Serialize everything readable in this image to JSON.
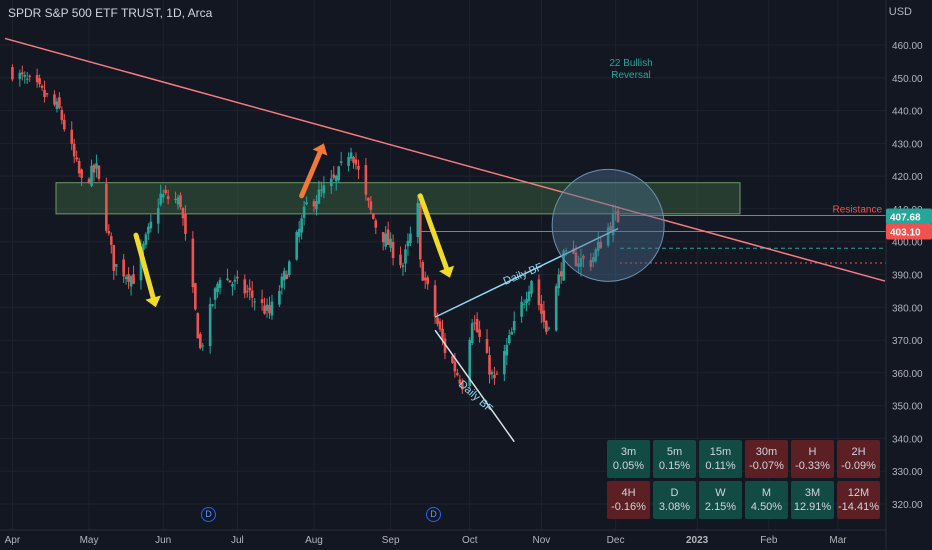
{
  "header": {
    "title": "SPDR S&P 500 ETF TRUST, 1D, Arca",
    "currency": "USD"
  },
  "chart_data": {
    "type": "candlestick",
    "ylim": [
      315,
      466
    ],
    "x_ticks": [
      "Apr",
      "May",
      "Jun",
      "Jul",
      "Aug",
      "Sep",
      "Oct",
      "Nov",
      "Dec",
      "2023",
      "Feb",
      "Mar"
    ],
    "y_ticks": [
      460,
      450,
      440,
      430,
      420,
      410,
      400,
      390,
      380,
      370,
      360,
      350,
      340,
      330,
      320
    ],
    "price_labels": {
      "last": "407.68",
      "prev": "403.10",
      "resistance": "Resistance"
    },
    "annotations": {
      "bullish_reversal": [
        "22 Bullish",
        "Reversal"
      ],
      "pattern_upper": "Daily BF",
      "pattern_lower": "Daily BF",
      "event_markers": [
        "D",
        "D"
      ]
    },
    "anchors": [
      {
        "date": "2022-04-01",
        "close": 452
      },
      {
        "date": "2022-04-12",
        "close": 446
      },
      {
        "date": "2022-04-20",
        "close": 440
      },
      {
        "date": "2022-04-29",
        "close": 418
      },
      {
        "date": "2022-05-05",
        "close": 422
      },
      {
        "date": "2022-05-12",
        "close": 393
      },
      {
        "date": "2022-05-20",
        "close": 389
      },
      {
        "date": "2022-05-31",
        "close": 414
      },
      {
        "date": "2022-06-08",
        "close": 412
      },
      {
        "date": "2022-06-16",
        "close": 367
      },
      {
        "date": "2022-06-24",
        "close": 390
      },
      {
        "date": "2022-07-06",
        "close": 384
      },
      {
        "date": "2022-07-14",
        "close": 378
      },
      {
        "date": "2022-07-22",
        "close": 393
      },
      {
        "date": "2022-07-29",
        "close": 411
      },
      {
        "date": "2022-08-10",
        "close": 419
      },
      {
        "date": "2022-08-16",
        "close": 429
      },
      {
        "date": "2022-08-22",
        "close": 413
      },
      {
        "date": "2022-08-26",
        "close": 405
      },
      {
        "date": "2022-09-06",
        "close": 393
      },
      {
        "date": "2022-09-12",
        "close": 410
      },
      {
        "date": "2022-09-13",
        "close": 393
      },
      {
        "date": "2022-09-23",
        "close": 367
      },
      {
        "date": "2022-09-30",
        "close": 357
      },
      {
        "date": "2022-10-04",
        "close": 377
      },
      {
        "date": "2022-10-13",
        "close": 357
      },
      {
        "date": "2022-10-21",
        "close": 374
      },
      {
        "date": "2022-10-28",
        "close": 389
      },
      {
        "date": "2022-11-03",
        "close": 373
      },
      {
        "date": "2022-11-10",
        "close": 395
      },
      {
        "date": "2022-11-21",
        "close": 394
      },
      {
        "date": "2022-11-30",
        "close": 407
      },
      {
        "date": "2022-12-02",
        "close": 407
      }
    ],
    "levels": {
      "zone_top": 418,
      "zone_bottom": 408.5,
      "resistance": 408,
      "red_line": 403.1,
      "green_dashed": 398,
      "red_dashed": 393.5
    },
    "trendline": [
      {
        "date": "2022-03-29",
        "value": 462
      },
      {
        "date": "2023-03-20",
        "value": 388
      }
    ],
    "channel_upper": [
      {
        "date": "2022-09-19",
        "value": 377
      },
      {
        "date": "2022-12-02",
        "value": 404
      }
    ],
    "channel_lower": [
      {
        "date": "2022-09-19",
        "value": 373
      },
      {
        "date": "2022-10-21",
        "value": 339
      }
    ],
    "arrows": [
      {
        "color": "#f0db2a",
        "direction": "down",
        "from": {
          "date": "2022-05-21",
          "value": 402
        },
        "to": {
          "date": "2022-05-29",
          "value": 380
        }
      },
      {
        "color": "#f47936",
        "direction": "up",
        "from": {
          "date": "2022-07-27",
          "value": 414
        },
        "to": {
          "date": "2022-08-05",
          "value": 430
        }
      },
      {
        "color": "#f0db2a",
        "direction": "down",
        "from": {
          "date": "2022-09-13",
          "value": 414
        },
        "to": {
          "date": "2022-09-25",
          "value": 389
        }
      }
    ],
    "highlight": {
      "date": "2022-11-28",
      "value": 405
    }
  },
  "performance": [
    {
      "period": "3m",
      "change": "0.05%",
      "positive": true
    },
    {
      "period": "5m",
      "change": "0.15%",
      "positive": true
    },
    {
      "period": "15m",
      "change": "0.11%",
      "positive": true
    },
    {
      "period": "30m",
      "change": "-0.07%",
      "positive": false
    },
    {
      "period": "H",
      "change": "-0.33%",
      "positive": false
    },
    {
      "period": "2H",
      "change": "-0.09%",
      "positive": false
    },
    {
      "period": "4H",
      "change": "-0.16%",
      "positive": false
    },
    {
      "period": "D",
      "change": "3.08%",
      "positive": true
    },
    {
      "period": "W",
      "change": "2.15%",
      "positive": true
    },
    {
      "period": "M",
      "change": "4.50%",
      "positive": true
    },
    {
      "period": "3M",
      "change": "12.91%",
      "positive": true
    },
    {
      "period": "12M",
      "change": "-14.41%",
      "positive": false
    }
  ],
  "colors": {
    "background": "#131722",
    "up": "#26a69a",
    "down": "#ef5350",
    "zone_fill": "#3d6b45",
    "trendline": "#f77c80",
    "channel": "#8fd8f0"
  }
}
